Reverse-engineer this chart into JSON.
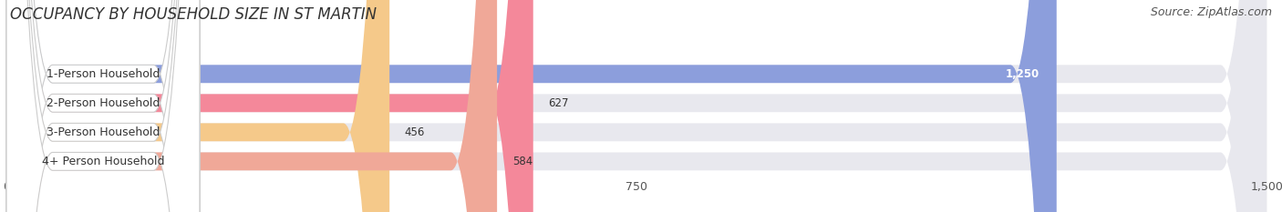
{
  "title": "OCCUPANCY BY HOUSEHOLD SIZE IN ST MARTIN",
  "source": "Source: ZipAtlas.com",
  "categories": [
    "1-Person Household",
    "2-Person Household",
    "3-Person Household",
    "4+ Person Household"
  ],
  "values": [
    1250,
    627,
    456,
    584
  ],
  "bar_colors": [
    "#8c9edc",
    "#f4889a",
    "#f5c98a",
    "#f0a898"
  ],
  "label_colors": [
    "white",
    "black",
    "black",
    "black"
  ],
  "xlim": [
    0,
    1500
  ],
  "xticks": [
    0,
    750,
    1500
  ],
  "background_color": "#ffffff",
  "bar_bg_color": "#e8e8ee",
  "title_fontsize": 12,
  "source_fontsize": 9,
  "bar_height": 0.62
}
